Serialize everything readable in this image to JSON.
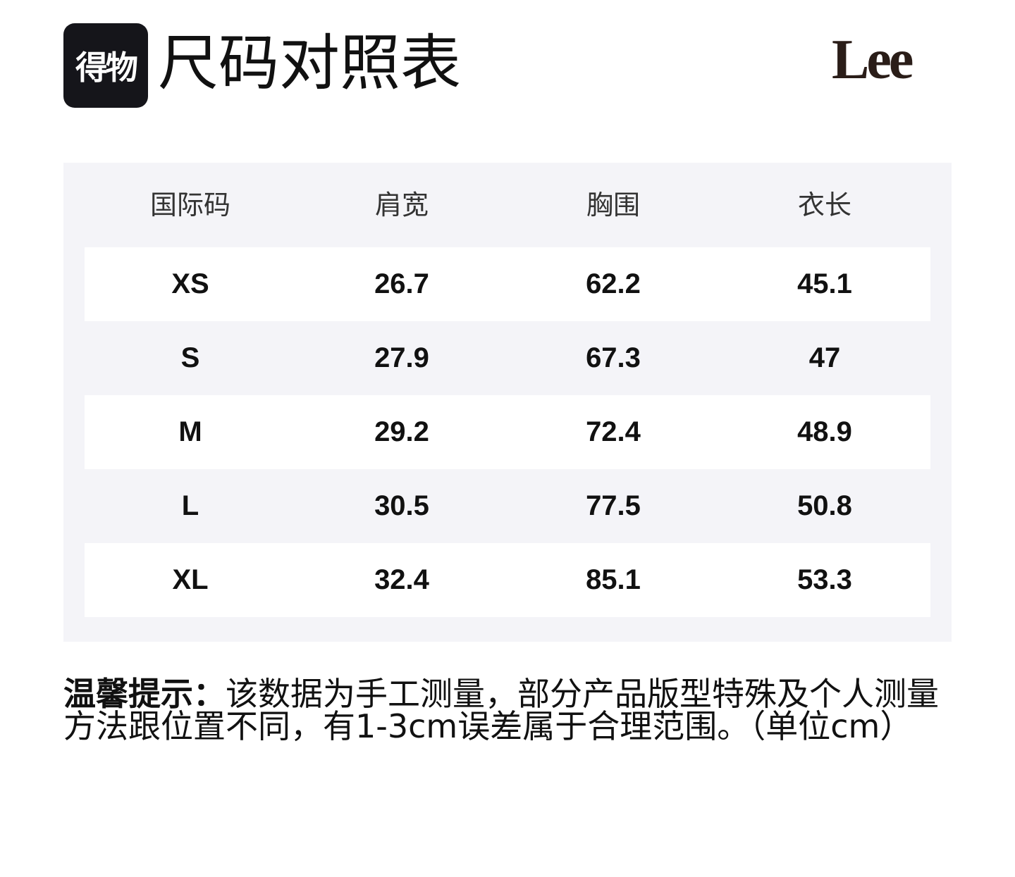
{
  "header": {
    "app_logo": "得物",
    "title": "尺码对照表",
    "brand": "Lee"
  },
  "table": {
    "columns": [
      "国际码",
      "肩宽",
      "胸围",
      "衣长"
    ],
    "rows": [
      [
        "XS",
        26.7,
        62.2,
        45.1
      ],
      [
        "S",
        27.9,
        67.3,
        47
      ],
      [
        "M",
        29.2,
        72.4,
        48.9
      ],
      [
        "L",
        30.5,
        77.5,
        50.8
      ],
      [
        "XL",
        32.4,
        85.1,
        53.3
      ]
    ]
  },
  "note": {
    "label": "温馨提示：",
    "text": "该数据为手工测量，部分产品版型特殊及个人测量方法跟位置不同，有1-3cm误差属于合理范围。（单位cm）"
  }
}
